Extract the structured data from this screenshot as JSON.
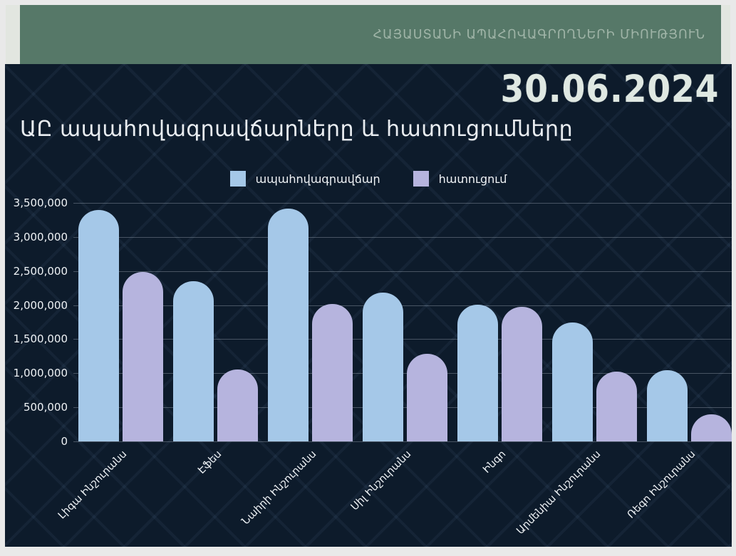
{
  "header": {
    "org_name": "ՀԱՅԱՍՏԱՆԻ ԱՊԱՀՈՎԱԳՐՈՂՆԵՐԻ ՄԻՈՒԹՅՈՒՆ",
    "banner_color": "#567868",
    "strip_color": "#e2e6e0",
    "org_text_color": "#9fb4a7"
  },
  "report": {
    "date": "30.06.2024",
    "title": "ԱԸ ապահովագրավճարները և հատուցումները"
  },
  "colors": {
    "panel_background": "#0d1b2b",
    "premium_bar": "#a5c8e8",
    "claim_bar": "#b6b4de",
    "gridline": "rgba(210,220,230,0.30)",
    "axis_text": "#eef2f5"
  },
  "chart_data": {
    "type": "bar",
    "title": "ԱԸ ապահովագրավճարները և հատուցումները",
    "categories": [
      "Լիգա Ինշուրանս",
      "Էֆես",
      "Նաիրի Ինշուրանս",
      "Սիլ Ինշուրանս",
      "Ինգո",
      "Արմենիա Ինշուրանս",
      "Ռեգո Ինշուրանս"
    ],
    "series": [
      {
        "name": "ապահովագրավճար",
        "color": "#a5c8e8",
        "values": [
          3400000,
          2350000,
          3420000,
          2180000,
          2010000,
          1740000,
          1040000
        ]
      },
      {
        "name": "հատուցում",
        "color": "#b6b4de",
        "values": [
          2490000,
          1060000,
          2020000,
          1290000,
          1970000,
          1020000,
          400000
        ]
      }
    ],
    "xlabel": "",
    "ylabel": "",
    "ylim": [
      0,
      3500000
    ],
    "ytick_step": 500000,
    "ytick_labels": [
      "0",
      "500,000",
      "1,000,000",
      "1,500,000",
      "2,000,000",
      "2,500,000",
      "3,000,000",
      "3,500,000"
    ],
    "grid": true,
    "legend_position": "top-center"
  }
}
